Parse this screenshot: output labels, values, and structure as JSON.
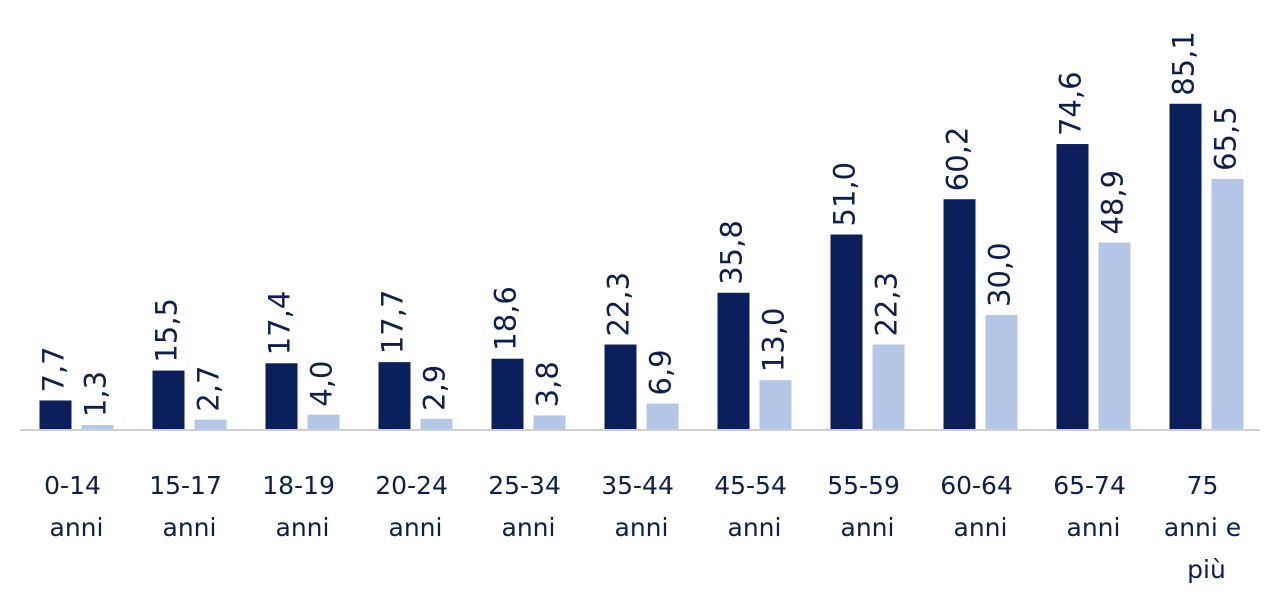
{
  "chart_data": {
    "type": "bar",
    "categories": [
      "0-14 anni",
      "15-17 anni",
      "18-19 anni",
      "20-24 anni",
      "25-34 anni",
      "35-44 anni",
      "45-54 anni",
      "55-59 anni",
      "60-64 anni",
      "65-74 anni",
      "75 anni e più"
    ],
    "series": [
      {
        "color": "#0b1f5c",
        "values": [
          7.7,
          15.5,
          17.4,
          17.7,
          18.6,
          22.3,
          35.8,
          51.0,
          60.2,
          74.6,
          85.1
        ],
        "value_labels": [
          "7,7",
          "15,5",
          "17,4",
          "17,7",
          "18,6",
          "22,3",
          "35,8",
          "51,0",
          "60,2",
          "74,6",
          "85,1"
        ]
      },
      {
        "color": "#b4c7e7",
        "values": [
          1.3,
          2.7,
          4.0,
          2.9,
          3.8,
          6.9,
          13.0,
          22.3,
          30.0,
          48.9,
          65.5
        ],
        "value_labels": [
          "1,3",
          "2,7",
          "4,0",
          "2,9",
          "3,8",
          "6,9",
          "13,0",
          "22,3",
          "30,0",
          "48,9",
          "65,5"
        ]
      }
    ],
    "ylim": [
      0,
      90
    ]
  }
}
